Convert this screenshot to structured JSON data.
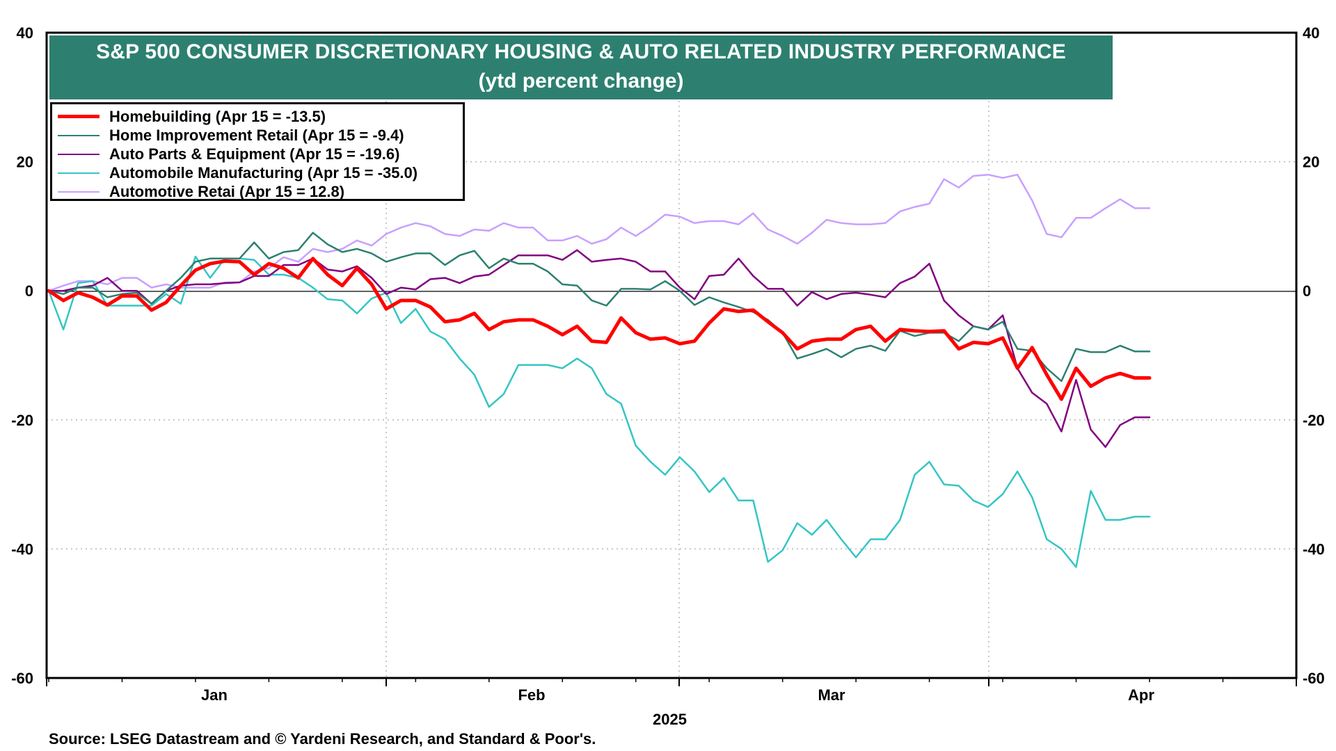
{
  "chart_data": {
    "type": "line",
    "title": "S&P 500 CONSUMER DISCRETIONARY HOUSING & AUTO RELATED INDUSTRY PERFORMANCE",
    "subtitle": "(ytd percent change)",
    "ylim": [
      -60,
      40
    ],
    "yticks": [
      40,
      20,
      0,
      -20,
      -40,
      -60
    ],
    "ytick_labels": [
      "40",
      "20",
      "0",
      "-20",
      "-40",
      "-60"
    ],
    "x_month_labels": [
      "Jan",
      "Feb",
      "Mar",
      "Apr"
    ],
    "x_year_label": "2025",
    "grid": true,
    "legend_position": "top-left",
    "series": [
      {
        "name": "Homebuilding (Apr 15 = -13.5)",
        "color": "#ff0000",
        "width": 5,
        "values": [
          0,
          -1.5,
          -0.3,
          -1,
          -2.2,
          -0.8,
          -0.8,
          -3,
          -1.8,
          0.8,
          3.2,
          4.2,
          4.6,
          4.5,
          2.5,
          4.2,
          3.5,
          2,
          5,
          2.5,
          0.8,
          3.5,
          1,
          -2.8,
          -1.5,
          -1.5,
          -2.5,
          -4.8,
          -4.5,
          -3.5,
          -6,
          -4.8,
          -4.5,
          -4.5,
          -5.5,
          -6.8,
          -5.5,
          -7.8,
          -8,
          -4.2,
          -6.5,
          -7.5,
          -7.3,
          -8.2,
          -7.8,
          -5,
          -2.8,
          -3.2,
          -3,
          -4.8,
          -6.5,
          -9,
          -7.8,
          -7.5,
          -7.5,
          -6,
          -5.5,
          -7.8,
          -6,
          -6.2,
          -6.3,
          -6.2,
          -9,
          -8,
          -8.2,
          -7.3,
          -12,
          -8.8,
          -13,
          -16.8,
          -12,
          -14.8,
          -13.5,
          -12.8,
          -13.5,
          -13.5
        ]
      },
      {
        "name": "Home Improvement Retail (Apr 15 = -9.4)",
        "color": "#2d8070",
        "width": 2.5,
        "values": [
          0,
          -0.5,
          0.5,
          0.5,
          -1,
          -0.5,
          -0.3,
          -2,
          0,
          2,
          4.5,
          5,
          5,
          5,
          7.5,
          5,
          6,
          6.3,
          9,
          7.2,
          6,
          6.5,
          5.8,
          4.5,
          5.2,
          5.8,
          5.8,
          4,
          5.5,
          6.2,
          3.5,
          5,
          4.2,
          4.2,
          3,
          1,
          0.8,
          -1.5,
          -2.3,
          0.3,
          0.3,
          0.2,
          1.5,
          0,
          -2.2,
          -1,
          -1.8,
          -2.5,
          -3.3,
          -4.5,
          -6.5,
          -10.5,
          -9.8,
          -9,
          -10.3,
          -9,
          -8.5,
          -9.3,
          -6.2,
          -7,
          -6.5,
          -6.5,
          -7.8,
          -5.5,
          -6,
          -4.8,
          -9,
          -9.3,
          -12,
          -14,
          -9,
          -9.5,
          -9.5,
          -8.5,
          -9.4,
          -9.4
        ]
      },
      {
        "name": "Auto Parts & Equipment (Apr 15 = -19.6)",
        "color": "#800080",
        "width": 2.5,
        "values": [
          0,
          0,
          0.5,
          0.8,
          2,
          0,
          0,
          -2,
          0,
          0.8,
          1,
          1,
          1.2,
          1.3,
          2.3,
          2.3,
          4,
          4,
          5,
          3.3,
          3,
          3.8,
          2,
          -0.5,
          0.5,
          0.2,
          1.8,
          2,
          1.2,
          2.2,
          2.5,
          4,
          5.5,
          5.5,
          5.5,
          4.8,
          6.3,
          4.5,
          4.8,
          5,
          4.5,
          3,
          3,
          0.5,
          -1.3,
          2.3,
          2.5,
          5,
          2.3,
          0.3,
          0.3,
          -2.3,
          -0.2,
          -1.3,
          -0.5,
          -0.3,
          -0.6,
          -1,
          1.2,
          2.2,
          4.2,
          -1.5,
          -3.8,
          -5.5,
          -6,
          -3.8,
          -12,
          -15.8,
          -17.5,
          -21.8,
          -13.8,
          -21.5,
          -24.2,
          -20.8,
          -19.6,
          -19.6
        ]
      },
      {
        "name": "Automobile Manufacturing (Apr 15 = -35.0)",
        "color": "#35c5c5",
        "width": 2.5,
        "values": [
          0,
          -6,
          1.2,
          1.5,
          -2.3,
          -2.3,
          -2.3,
          -2.3,
          -0.5,
          -2,
          5.3,
          2,
          5,
          5,
          4.8,
          2.5,
          2.5,
          2,
          0.5,
          -1.3,
          -1.5,
          -3.5,
          -1.2,
          -0.3,
          -5,
          -2.8,
          -6.3,
          -7.5,
          -10.5,
          -13,
          -18,
          -16,
          -11.5,
          -11.5,
          -11.5,
          -12,
          -10.5,
          -12,
          -16,
          -17.5,
          -24,
          -26.5,
          -28.5,
          -25.8,
          -28,
          -31.2,
          -29,
          -32.5,
          -32.5,
          -42,
          -40.2,
          -36,
          -37.8,
          -35.5,
          -38.5,
          -41.3,
          -38.5,
          -38.5,
          -35.5,
          -28.5,
          -26.5,
          -30,
          -30.2,
          -32.5,
          -33.5,
          -31.5,
          -28,
          -32,
          -38.5,
          -40,
          -42.8,
          -31,
          -35.5,
          -35.5,
          -35,
          -35
        ]
      },
      {
        "name": "Automotive Retai (Apr 15 = 12.8)",
        "color": "#c8a0ff",
        "width": 2.5,
        "values": [
          0,
          0.8,
          1.5,
          1.5,
          1,
          2,
          2,
          0.5,
          1,
          0.5,
          0.5,
          0.5,
          1.3,
          1.3,
          3,
          3.5,
          5.2,
          4.5,
          6.5,
          6,
          6.5,
          7.8,
          7,
          8.8,
          9.8,
          10.5,
          10,
          8.8,
          8.5,
          9.5,
          9.3,
          10.5,
          9.8,
          9.8,
          7.8,
          7.8,
          8.5,
          7.3,
          8,
          9.8,
          8.5,
          10,
          11.8,
          11.5,
          10.5,
          10.8,
          10.8,
          10.3,
          12,
          9.5,
          8.5,
          7.3,
          9,
          11,
          10.5,
          10.3,
          10.3,
          10.5,
          12.3,
          13,
          13.5,
          17.3,
          16,
          17.8,
          18,
          17.5,
          18,
          14,
          8.8,
          8.3,
          11.3,
          11.3,
          12.8,
          14.2,
          12.8,
          12.8
        ]
      }
    ]
  },
  "source": "Source: LSEG Datastream and © Yardeni Research, and Standard & Poor's."
}
